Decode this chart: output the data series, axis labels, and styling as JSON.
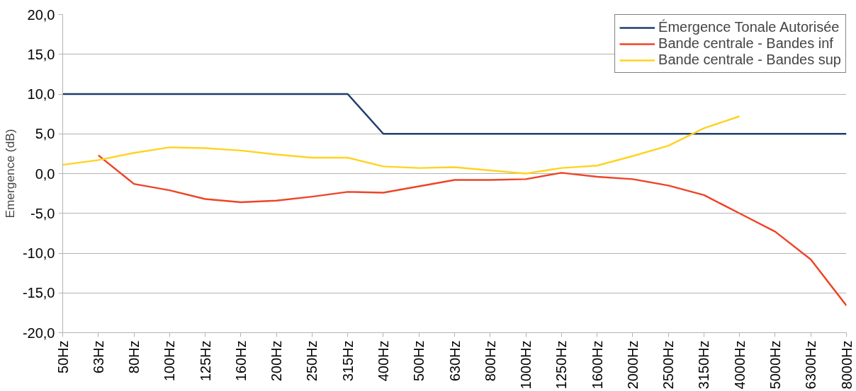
{
  "chart_data": {
    "type": "line",
    "ylabel": "Emergence (dB)",
    "categories": [
      "50Hz",
      "63Hz",
      "80Hz",
      "100Hz",
      "125Hz",
      "160Hz",
      "200Hz",
      "250Hz",
      "315Hz",
      "400Hz",
      "500Hz",
      "630Hz",
      "800Hz",
      "1000Hz",
      "1250Hz",
      "1600Hz",
      "2000Hz",
      "2500Hz",
      "3150Hz",
      "4000Hz",
      "5000Hz",
      "6300Hz",
      "8000Hz"
    ],
    "series": [
      {
        "name": "Émergence Tonale Autorisée",
        "color": "#1f3d6e",
        "values": [
          10,
          10,
          10,
          10,
          10,
          10,
          10,
          10,
          10,
          5,
          5,
          5,
          5,
          5,
          5,
          5,
          5,
          5,
          5,
          5,
          5,
          5,
          5
        ]
      },
      {
        "name": "Bande centrale - Bandes inf",
        "color": "#ee4427",
        "values": [
          null,
          2.3,
          -1.3,
          -2.1,
          -3.2,
          -3.6,
          -3.4,
          -2.9,
          -2.3,
          -2.4,
          -1.6,
          -0.8,
          -0.8,
          -0.7,
          0.1,
          -0.4,
          -0.7,
          -1.5,
          -2.7,
          -5.0,
          -7.3,
          -10.8,
          -16.6
        ]
      },
      {
        "name": "Bande centrale - Bandes sup",
        "color": "#ffd320",
        "values": [
          1.1,
          1.7,
          2.6,
          3.3,
          3.2,
          2.9,
          2.4,
          2.0,
          2.0,
          0.9,
          0.7,
          0.8,
          0.4,
          0.0,
          0.7,
          1.0,
          2.2,
          3.5,
          5.7,
          7.2,
          null,
          null,
          null
        ]
      }
    ],
    "ylim": [
      -20,
      20
    ],
    "yticks": [
      {
        "value": -20,
        "label": "-20,0"
      },
      {
        "value": -15,
        "label": "-15,0"
      },
      {
        "value": -10,
        "label": "-10,0"
      },
      {
        "value": -5,
        "label": "-5,0"
      },
      {
        "value": 0,
        "label": "0,0"
      },
      {
        "value": 5,
        "label": "5,0"
      },
      {
        "value": 10,
        "label": "10,0"
      },
      {
        "value": 15,
        "label": "15,0"
      },
      {
        "value": 20,
        "label": "20,0"
      }
    ],
    "grid": "y",
    "legend": "top right",
    "marker": "none",
    "line_style": "solid"
  }
}
